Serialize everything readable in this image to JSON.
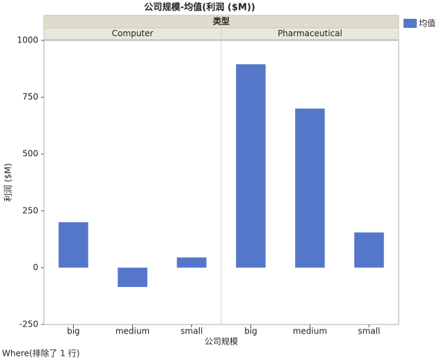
{
  "chart_data": {
    "type": "bar",
    "title": "公司规模-均值(利润 ($M))",
    "facet_label": "类型",
    "x_label": "公司规模",
    "y_label": "利润 ($M)",
    "legend": [
      "均值"
    ],
    "color": "#5577c9",
    "ylim": [
      -250,
      1000
    ],
    "yticks": [
      -250,
      0,
      250,
      500,
      750,
      1000
    ],
    "panels": [
      {
        "name": "Computer",
        "categories": [
          "big",
          "medium",
          "small"
        ],
        "values": [
          200,
          -85,
          45
        ]
      },
      {
        "name": "Pharmaceutical",
        "categories": [
          "big",
          "medium",
          "small"
        ],
        "values": [
          895,
          700,
          155
        ]
      }
    ]
  },
  "footer": "Where(排除了 1 行)"
}
